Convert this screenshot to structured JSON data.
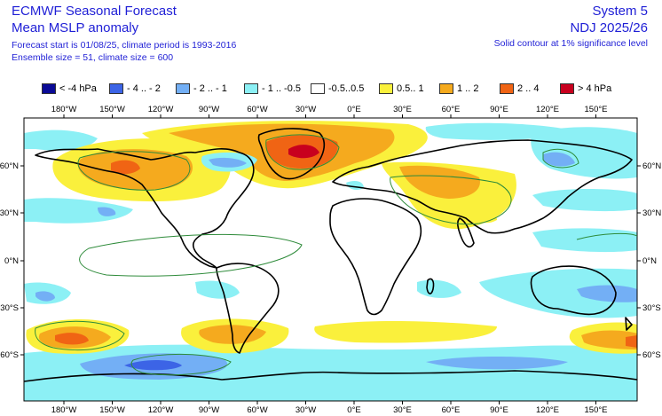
{
  "header": {
    "title": "ECMWF Seasonal Forecast",
    "subtitle": "Mean MSLP anomaly",
    "forecast_info": "Forecast start is 01/08/25, climate period is 1993-2016",
    "ensemble_info": "Ensemble size = 51, climate size = 600",
    "system": "System 5",
    "period": "NDJ 2025/26",
    "contour_note": "Solid contour at 1% significance level"
  },
  "legend": [
    {
      "label": "< -4 hPa",
      "color": "#0a0a96"
    },
    {
      "label": "- 4 .. - 2",
      "color": "#3c64e6"
    },
    {
      "label": "- 2 .. - 1",
      "color": "#73aff5"
    },
    {
      "label": "- 1 .. -0.5",
      "color": "#8cf0f5"
    },
    {
      "label": "-0.5..0.5",
      "color": "#ffffff"
    },
    {
      "label": "0.5.. 1",
      "color": "#faf03c"
    },
    {
      "label": "1 .. 2",
      "color": "#f5aa1e"
    },
    {
      "label": "2 .. 4",
      "color": "#f06414"
    },
    {
      "label": "> 4 hPa",
      "color": "#c8001e"
    }
  ],
  "axes": {
    "lon_labels": [
      "180°W",
      "150°W",
      "120°W",
      "90°W",
      "60°W",
      "30°W",
      "0°E",
      "30°E",
      "60°E",
      "90°E",
      "120°E",
      "150°E"
    ],
    "lat_labels": [
      "60°N",
      "30°N",
      "0°N",
      "30°S",
      "60°S"
    ]
  }
}
